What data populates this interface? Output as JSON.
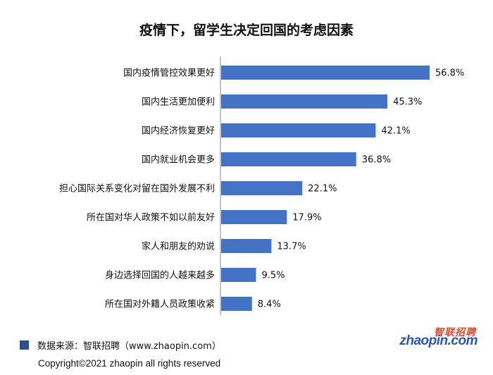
{
  "chart_data": {
    "type": "bar",
    "orientation": "horizontal",
    "title": "疫情下，留学生决定回国的考虑因素",
    "categories": [
      "国内疫情管控效果更好",
      "国内生活更加便利",
      "国内经济恢复更好",
      "国内就业机会更多",
      "担心国际关系变化对留在国外发展不利",
      "所在国对华人政策不如以前友好",
      "家人和朋友的劝说",
      "身边选择回国的人越来越多",
      "所在国对外籍人员政策收紧"
    ],
    "values": [
      56.8,
      45.3,
      42.1,
      36.8,
      22.1,
      17.9,
      13.7,
      9.5,
      8.4
    ],
    "value_labels": [
      "56.8%",
      "45.3%",
      "42.1%",
      "36.8%",
      "22.1%",
      "17.9%",
      "13.7%",
      "9.5%",
      "8.4%"
    ],
    "xlim": [
      0,
      56.8
    ],
    "bar_color": "#4472c4",
    "grid": false
  },
  "footer": {
    "source": "数据来源：智联招聘（www.zhaopin.com）",
    "copyright": "Copyright©2021 zhaopin all rights reserved",
    "swatch_color": "#2c4f8c"
  },
  "logo": {
    "cn": "智联招聘",
    "en": "zhaopin.com"
  }
}
